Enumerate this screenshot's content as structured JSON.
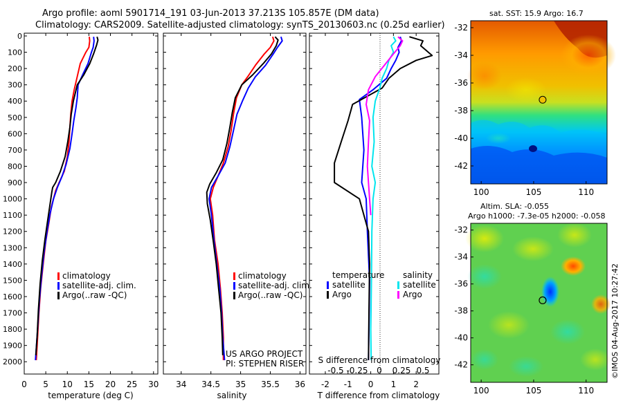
{
  "titles": {
    "line1": "Argo profile: aoml 5901714_191 03-Jun-2013 37.213S 105.857E (DM data)",
    "line2": "Climatology: CARS2009. Satellite-adjusted climatology: synTS_20130603.nc (0.25d earlier)"
  },
  "colors": {
    "climatology": "#ff0000",
    "satellite": "#0000ff",
    "argo": "#000000",
    "satellite_salinity": "#00e5ee",
    "argo_salinity": "#ff00ff"
  },
  "chart_data": [
    {
      "type": "line",
      "xlabel": "temperature (deg C)",
      "ylabel": "",
      "xlim": [
        0,
        31
      ],
      "ylim": [
        2050,
        0
      ],
      "xticks": [
        0,
        5,
        10,
        15,
        20,
        25,
        30
      ],
      "yticks": [
        0,
        100,
        200,
        300,
        400,
        500,
        600,
        700,
        800,
        900,
        1000,
        1100,
        1200,
        1300,
        1400,
        1500,
        1600,
        1700,
        1800,
        1900,
        2000
      ],
      "legend": "bottom-right",
      "series": [
        {
          "name": "climatology",
          "color": "#ff0000",
          "points": [
            [
              15.1,
              5
            ],
            [
              15.2,
              30
            ],
            [
              15.0,
              70
            ],
            [
              14.3,
              100
            ],
            [
              13.0,
              170
            ],
            [
              12.2,
              260
            ],
            [
              11.6,
              330
            ],
            [
              11.1,
              400
            ],
            [
              10.8,
              480
            ],
            [
              10.6,
              560
            ],
            [
              10.4,
              650
            ],
            [
              10.0,
              740
            ],
            [
              9.3,
              830
            ],
            [
              8.1,
              900
            ],
            [
              7.3,
              950
            ],
            [
              6.3,
              1050
            ],
            [
              5.7,
              1150
            ],
            [
              5.0,
              1260
            ],
            [
              4.4,
              1400
            ],
            [
              3.8,
              1550
            ],
            [
              3.4,
              1700
            ],
            [
              3.1,
              1850
            ],
            [
              2.8,
              1990
            ]
          ]
        },
        {
          "name": "satellite-adj. clim.",
          "color": "#0000ff",
          "points": [
            [
              16.1,
              5
            ],
            [
              16.2,
              30
            ],
            [
              16.0,
              70
            ],
            [
              15.6,
              100
            ],
            [
              14.8,
              170
            ],
            [
              13.7,
              230
            ],
            [
              12.5,
              300
            ],
            [
              12.3,
              380
            ],
            [
              12.0,
              440
            ],
            [
              11.5,
              520
            ],
            [
              11.1,
              600
            ],
            [
              10.6,
              690
            ],
            [
              9.7,
              790
            ],
            [
              8.8,
              860
            ],
            [
              7.7,
              930
            ],
            [
              6.8,
              1000
            ],
            [
              6.0,
              1090
            ],
            [
              5.3,
              1200
            ],
            [
              4.6,
              1330
            ],
            [
              4.0,
              1480
            ],
            [
              3.5,
              1630
            ],
            [
              3.1,
              1800
            ],
            [
              2.6,
              1990
            ]
          ]
        },
        {
          "name": "Argo(..raw -QC)",
          "color": "#000000",
          "points": [
            [
              16.9,
              5
            ],
            [
              17.1,
              25
            ],
            [
              16.8,
              55
            ],
            [
              16.1,
              110
            ],
            [
              15.2,
              170
            ],
            [
              13.8,
              240
            ],
            [
              12.3,
              300
            ],
            [
              11.4,
              400
            ],
            [
              10.9,
              480
            ],
            [
              10.6,
              560
            ],
            [
              10.1,
              650
            ],
            [
              9.5,
              740
            ],
            [
              8.4,
              830
            ],
            [
              7.3,
              900
            ],
            [
              6.6,
              930
            ],
            [
              6.4,
              960
            ],
            [
              6.0,
              1030
            ],
            [
              5.4,
              1140
            ],
            [
              4.8,
              1250
            ],
            [
              4.2,
              1380
            ],
            [
              3.7,
              1520
            ],
            [
              3.3,
              1680
            ],
            [
              3.0,
              1840
            ],
            [
              2.7,
              1960
            ]
          ]
        }
      ]
    },
    {
      "type": "line",
      "xlabel": "salinity",
      "ylabel": "",
      "xlim": [
        33.7,
        36.1
      ],
      "ylim": [
        2050,
        0
      ],
      "xticks": [
        34,
        34.5,
        35,
        35.5,
        36
      ],
      "xticklabels": [
        "34",
        "34.5",
        "35",
        "35.5",
        "36"
      ],
      "legend": "bottom-right",
      "series": [
        {
          "name": "climatology",
          "color": "#ff0000",
          "points": [
            [
              35.54,
              5
            ],
            [
              35.56,
              30
            ],
            [
              35.5,
              70
            ],
            [
              35.4,
              110
            ],
            [
              35.25,
              180
            ],
            [
              35.12,
              250
            ],
            [
              35.02,
              300
            ],
            [
              34.93,
              380
            ],
            [
              34.88,
              480
            ],
            [
              34.84,
              580
            ],
            [
              34.79,
              680
            ],
            [
              34.71,
              780
            ],
            [
              34.62,
              860
            ],
            [
              34.54,
              930
            ],
            [
              34.49,
              1000
            ],
            [
              34.53,
              1100
            ],
            [
              34.56,
              1250
            ],
            [
              34.62,
              1400
            ],
            [
              34.66,
              1550
            ],
            [
              34.69,
              1700
            ],
            [
              34.71,
              1850
            ],
            [
              34.71,
              1990
            ]
          ]
        },
        {
          "name": "satellite-adj. clim.",
          "color": "#0000ff",
          "points": [
            [
              35.68,
              5
            ],
            [
              35.7,
              30
            ],
            [
              35.62,
              70
            ],
            [
              35.55,
              110
            ],
            [
              35.42,
              180
            ],
            [
              35.25,
              250
            ],
            [
              35.13,
              320
            ],
            [
              35.03,
              400
            ],
            [
              34.94,
              480
            ],
            [
              34.88,
              580
            ],
            [
              34.82,
              680
            ],
            [
              34.74,
              780
            ],
            [
              34.62,
              860
            ],
            [
              34.51,
              930
            ],
            [
              34.47,
              1000
            ],
            [
              34.51,
              1100
            ],
            [
              34.55,
              1250
            ],
            [
              34.6,
              1400
            ],
            [
              34.65,
              1550
            ],
            [
              34.68,
              1700
            ],
            [
              34.7,
              1850
            ],
            [
              34.73,
              1990
            ]
          ]
        },
        {
          "name": "Argo(..raw -QC)",
          "color": "#000000",
          "points": [
            [
              35.58,
              5
            ],
            [
              35.63,
              25
            ],
            [
              35.6,
              60
            ],
            [
              35.52,
              110
            ],
            [
              35.38,
              170
            ],
            [
              35.2,
              240
            ],
            [
              35.02,
              300
            ],
            [
              34.91,
              380
            ],
            [
              34.86,
              470
            ],
            [
              34.82,
              560
            ],
            [
              34.77,
              660
            ],
            [
              34.7,
              760
            ],
            [
              34.59,
              840
            ],
            [
              34.48,
              910
            ],
            [
              34.43,
              960
            ],
            [
              34.44,
              1030
            ],
            [
              34.49,
              1130
            ],
            [
              34.54,
              1260
            ],
            [
              34.59,
              1400
            ],
            [
              34.63,
              1550
            ],
            [
              34.67,
              1700
            ],
            [
              34.69,
              1850
            ],
            [
              34.7,
              1960
            ]
          ]
        }
      ],
      "annotations": [
        "US ARGO PROJECT",
        "PI: STEPHEN RISER"
      ]
    },
    {
      "type": "line",
      "xlabel": "T difference from climatology",
      "ylabel": "",
      "xlim": [
        -2.7,
        3
      ],
      "ylim": [
        2050,
        0
      ],
      "xticks": [
        -2,
        -1,
        0,
        1,
        2
      ],
      "top_axis_label": "S difference from climatology",
      "top_ticklabels": [
        "-0.5",
        "-0.25",
        "0",
        "0.25",
        "0.5"
      ],
      "legend": "bottom",
      "legend_groups": [
        "temperature",
        "salinity"
      ],
      "series": [
        {
          "name": "satellite",
          "group": "temperature",
          "color": "#0000ff",
          "points": [
            [
              1.3,
              5
            ],
            [
              1.35,
              30
            ],
            [
              1.2,
              70
            ],
            [
              1.25,
              100
            ],
            [
              1.1,
              150
            ],
            [
              0.9,
              200
            ],
            [
              0.7,
              260
            ],
            [
              0.1,
              330
            ],
            [
              -0.5,
              390
            ],
            [
              -0.4,
              500
            ],
            [
              -0.3,
              700
            ],
            [
              -0.4,
              900
            ],
            [
              -0.2,
              1000
            ],
            [
              -0.15,
              1200
            ],
            [
              -0.05,
              1500
            ],
            [
              -0.08,
              1800
            ],
            [
              -0.1,
              1990
            ]
          ]
        },
        {
          "name": "Argo",
          "group": "temperature",
          "color": "#000000",
          "points": [
            [
              1.7,
              5
            ],
            [
              2.3,
              30
            ],
            [
              2.2,
              60
            ],
            [
              2.7,
              120
            ],
            [
              2.0,
              150
            ],
            [
              1.3,
              200
            ],
            [
              0.8,
              260
            ],
            [
              0.5,
              320
            ],
            [
              -0.8,
              420
            ],
            [
              -1.0,
              520
            ],
            [
              -1.3,
              650
            ],
            [
              -1.6,
              780
            ],
            [
              -1.6,
              900
            ],
            [
              -0.5,
              1000
            ],
            [
              -0.3,
              1100
            ],
            [
              -0.1,
              1200
            ],
            [
              -0.05,
              1400
            ],
            [
              -0.08,
              1700
            ],
            [
              -0.1,
              1990
            ]
          ]
        },
        {
          "name": "satellite",
          "group": "salinity",
          "color": "#00e5ee",
          "points": [
            [
              1.0,
              5
            ],
            [
              1.1,
              30
            ],
            [
              0.9,
              60
            ],
            [
              1.0,
              100
            ],
            [
              0.8,
              150
            ],
            [
              0.7,
              200
            ],
            [
              0.5,
              260
            ],
            [
              0.4,
              320
            ],
            [
              0.2,
              400
            ],
            [
              0.1,
              500
            ],
            [
              0.15,
              650
            ],
            [
              0.05,
              800
            ],
            [
              0.2,
              900
            ],
            [
              0.1,
              1000
            ],
            [
              0.05,
              1200
            ],
            [
              0.03,
              1500
            ],
            [
              0.0,
              1800
            ],
            [
              0.02,
              1990
            ]
          ]
        },
        {
          "name": "Argo",
          "group": "salinity",
          "color": "#ff00ff",
          "points": [
            [
              1.2,
              5
            ],
            [
              1.4,
              30
            ],
            [
              1.3,
              60
            ],
            [
              1.0,
              110
            ],
            [
              0.6,
              180
            ],
            [
              0.2,
              250
            ],
            [
              -0.1,
              330
            ],
            [
              -0.2,
              420
            ],
            [
              -0.05,
              520
            ],
            [
              -0.1,
              650
            ],
            [
              -0.15,
              800
            ],
            [
              -0.1,
              900
            ],
            [
              -0.05,
              1000
            ],
            [
              0.0,
              1100
            ]
          ]
        }
      ]
    },
    {
      "type": "heatmap",
      "title": "sat. SST: 15.9 Argo: 16.7",
      "xticks": [
        100,
        105,
        110
      ],
      "yticks": [
        -32,
        -34,
        -36,
        -38,
        -40,
        -42
      ],
      "xlim": [
        99,
        112
      ],
      "ylim": [
        -43.3,
        -31.5
      ],
      "marker": [
        105.857,
        -37.213
      ]
    },
    {
      "type": "heatmap",
      "title": "Altim. SLA: -0.055",
      "subtitle": "Argo h1000: -7.3e-05 h2000: -0.058",
      "xticks": [
        100,
        105,
        110
      ],
      "yticks": [
        -32,
        -34,
        -36,
        -38,
        -40,
        -42
      ],
      "xlim": [
        99,
        112
      ],
      "ylim": [
        -43.3,
        -31.5
      ],
      "marker": [
        105.857,
        -37.213
      ]
    }
  ],
  "footer": {
    "stamp": "©IMOS 04-Aug-2017 10:27:42"
  }
}
